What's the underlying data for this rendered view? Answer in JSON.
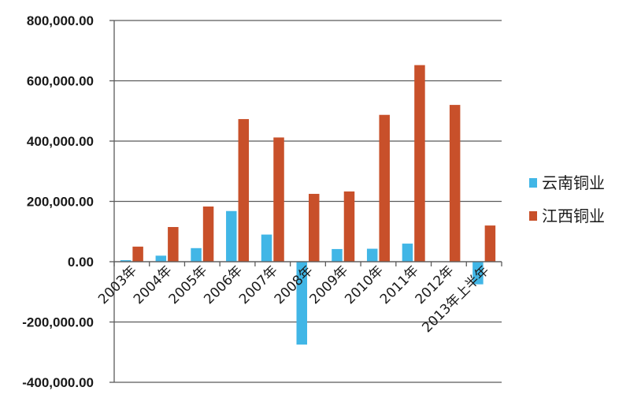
{
  "chart_data": {
    "type": "bar",
    "categories": [
      "2003年",
      "2004年",
      "2005年",
      "2006年",
      "2007年",
      "2008年",
      "2009年",
      "2010年",
      "2011年",
      "2012年",
      "2013年上半年"
    ],
    "series": [
      {
        "name": "云南铜业",
        "color": "#41b6e6",
        "values": [
          5000,
          20000,
          45000,
          168000,
          90000,
          -275000,
          42000,
          43000,
          60000,
          null,
          -75000
        ]
      },
      {
        "name": "江西铜业",
        "color": "#c8502a",
        "values": [
          50000,
          115000,
          183000,
          473000,
          412000,
          225000,
          233000,
          487000,
          652000,
          520000,
          120000
        ]
      }
    ],
    "yticks": [
      "800,000.00",
      "600,000.00",
      "400,000.00",
      "200,000.00",
      "0.00",
      "-200,000.00",
      "-400,000.00"
    ],
    "ylim": [
      -400000,
      800000
    ],
    "grid": true,
    "legend_position": "right"
  }
}
